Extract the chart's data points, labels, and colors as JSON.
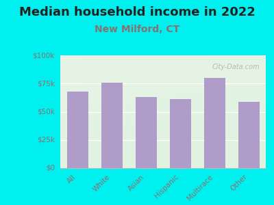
{
  "title": "Median household income in 2022",
  "subtitle": "New Milford, CT",
  "categories": [
    "All",
    "White",
    "Asian",
    "Hispanic",
    "Multirace",
    "Other"
  ],
  "values": [
    68000,
    76000,
    63000,
    61000,
    80000,
    59000
  ],
  "bar_color": "#b09cc8",
  "background_color": "#00f0f0",
  "title_color": "#222222",
  "title_fontsize": 13,
  "subtitle_fontsize": 10,
  "subtitle_color": "#8b7070",
  "tick_label_color": "#8b7070",
  "ytick_labels": [
    "$0",
    "$25k",
    "$50k",
    "$75k",
    "$100k"
  ],
  "ytick_values": [
    0,
    25000,
    50000,
    75000,
    100000
  ],
  "ylim": [
    0,
    100000
  ],
  "watermark": "City-Data.com",
  "grid_color": "#dddddd"
}
